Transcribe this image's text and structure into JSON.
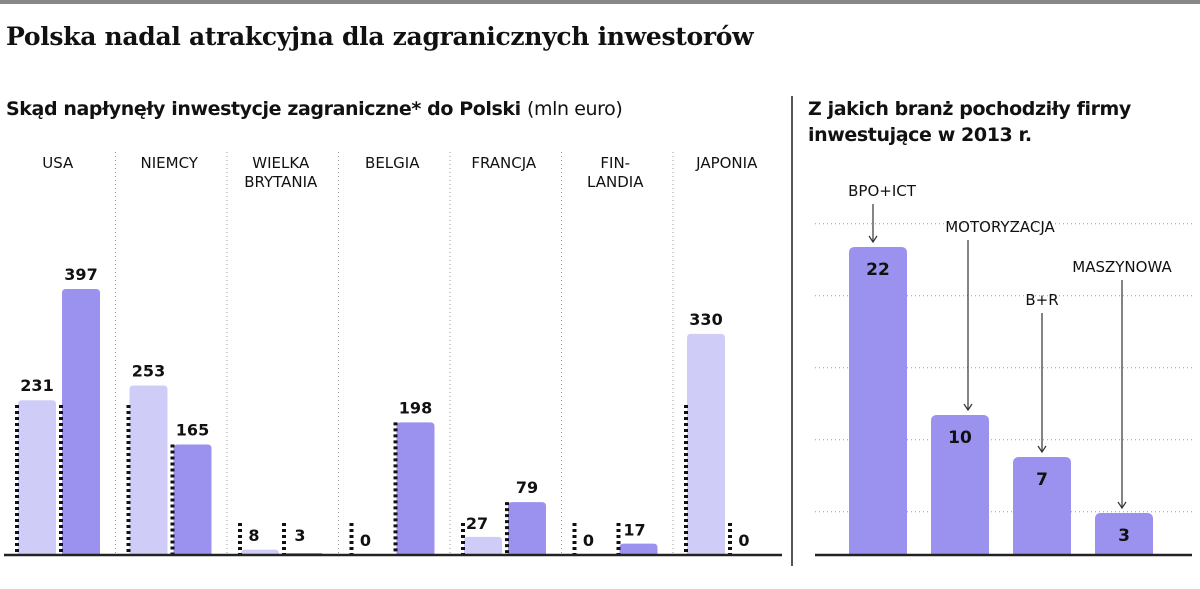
{
  "title": "Polska nadal atrakcyjna dla zagranicznych inwestorów",
  "left_subtitle": "Skąd napłynęły inwestycje zagraniczne* do Polski",
  "left_unit": "(mln euro)",
  "right_subtitle": "Z jakich branż pochodziły firmy inwestujące w 2013 r.",
  "colors": {
    "light": "#cfcdf8",
    "dark": "#9b92f0",
    "axis": "#222222",
    "grid": "#999999",
    "stripe": "#111111"
  },
  "chart_data": [
    {
      "type": "bar",
      "title": "Skąd napłynęły inwestycje zagraniczne* do Polski",
      "unit": "(mln euro)",
      "categories": [
        "USA",
        "NIEMCY",
        "WIELKA BRYTANIA",
        "BELGIA",
        "FRANCJA",
        "FIN-LANDIA",
        "JAPONIA"
      ],
      "category_labels": [
        [
          "USA"
        ],
        [
          "NIEMCY"
        ],
        [
          "WIELKA",
          "BRYTANIA"
        ],
        [
          "BELGIA"
        ],
        [
          "FRANCJA"
        ],
        [
          "FIN-",
          "LANDIA"
        ],
        [
          "JAPONIA"
        ]
      ],
      "series": [
        {
          "values": [
            231,
            253,
            8,
            0,
            27,
            0,
            330
          ]
        },
        {
          "values": [
            397,
            165,
            3,
            198,
            79,
            17,
            0
          ]
        }
      ],
      "ylim": [
        0,
        420
      ]
    },
    {
      "type": "bar",
      "title": "Z jakich branż pochodziły firmy inwestujące w 2013 r.",
      "categories": [
        "BPO+ICT",
        "MOTORYZACJA",
        "B+R",
        "MASZYNOWA"
      ],
      "values": [
        22,
        10,
        7,
        3
      ],
      "ylim": [
        0,
        27
      ]
    }
  ]
}
